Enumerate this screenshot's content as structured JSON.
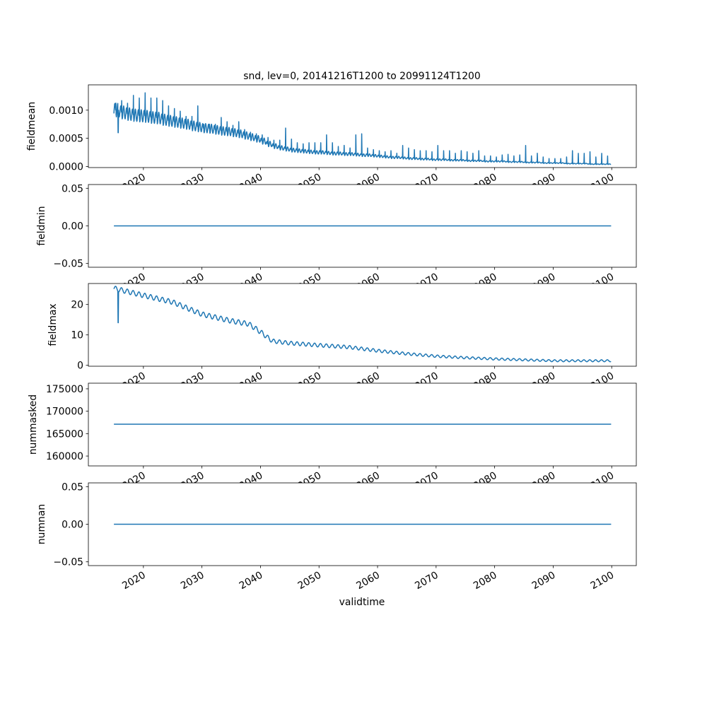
{
  "chart_data": {
    "type": "line",
    "title": "snd, lev=0, 20141216T1200 to 20991124T1200",
    "xlabel": "validtime",
    "x_range": [
      2010.6,
      2104.2
    ],
    "x_start": 2014.96,
    "x_end": 2099.9,
    "x_ticks": [
      2020,
      2030,
      2040,
      2050,
      2060,
      2070,
      2080,
      2090,
      2100
    ],
    "x_tick_labels": [
      "2020",
      "2030",
      "2040",
      "2050",
      "2060",
      "2070",
      "2080",
      "2090",
      "2100"
    ],
    "line_color": "#1f77b4",
    "grid": false,
    "panels": [
      {
        "ylabel": "fieldmean",
        "ylim": [
          -2e-05,
          0.00145
        ],
        "y_ticks": [
          0,
          0.0005,
          0.001
        ],
        "y_tick_labels": [
          "0.0000",
          "0.0005",
          "0.0010"
        ],
        "kind": "seasonal_peaks",
        "annual_years_start": 2015,
        "annual_trough_e4": [
          10.0,
          9.6,
          9.3,
          9.1,
          9.0,
          8.9,
          8.7,
          8.6,
          8.3,
          8.1,
          7.9,
          7.7,
          7.5,
          7.2,
          7.0,
          6.8,
          6.7,
          6.5,
          6.3,
          6.2,
          6.0,
          5.8,
          5.5,
          5.2,
          4.9,
          4.5,
          4.0,
          3.6,
          3.3,
          3.1,
          2.9,
          2.8,
          2.7,
          2.6,
          2.5,
          2.5,
          2.4,
          2.3,
          2.3,
          2.2,
          2.2,
          2.1,
          2.0,
          2.0,
          1.9,
          1.8,
          1.7,
          1.6,
          1.6,
          1.5,
          1.4,
          1.4,
          1.3,
          1.3,
          1.2,
          1.2,
          1.2,
          1.1,
          1.1,
          1.1,
          1.0,
          1.0,
          1.0,
          0.9,
          0.9,
          0.9,
          0.9,
          0.8,
          0.8,
          0.8,
          0.7,
          0.7,
          0.7,
          0.6,
          0.6,
          0.6,
          0.6,
          0.5,
          0.5,
          0.5,
          0.5,
          0.4,
          0.4,
          0.4,
          0.4
        ],
        "annual_peak_e4": [
          12,
          12.5,
          12,
          13.5,
          13,
          14,
          13,
          13,
          12.5,
          11.5,
          11,
          10.5,
          9.5,
          9.5,
          11.5,
          8,
          8,
          8,
          9.3,
          8.5,
          7.8,
          8.5,
          7,
          6.5,
          6.2,
          6,
          5.5,
          5,
          5,
          7.3,
          5.2,
          4.5,
          4.3,
          4.5,
          4.5,
          4.5,
          6,
          4.5,
          3.8,
          4,
          3.5,
          6,
          6.2,
          3.5,
          3.2,
          3,
          2.8,
          3,
          2.5,
          4,
          3.5,
          3.2,
          3,
          3,
          2.8,
          4,
          3,
          3,
          2.5,
          3,
          2.8,
          2.5,
          3,
          2,
          2,
          1.8,
          2.2,
          2.3,
          2,
          2.2,
          4,
          2,
          2.5,
          1.8,
          1.5,
          1.5,
          1.5,
          1.8,
          3,
          2.5,
          2.5,
          2.8,
          1.8,
          2.5,
          2
        ],
        "anomaly": {
          "x": 2015.7,
          "value": 0.0006
        }
      },
      {
        "ylabel": "fieldmin",
        "ylim": [
          -0.055,
          0.055
        ],
        "y_ticks": [
          -0.05,
          0,
          0.05
        ],
        "y_tick_labels": [
          "−0.05",
          "0.00",
          "0.05"
        ],
        "kind": "constant",
        "value": 0
      },
      {
        "ylabel": "fieldmax",
        "ylim": [
          -0.3,
          26.9
        ],
        "y_ticks": [
          0,
          10,
          20
        ],
        "y_tick_labels": [
          "0",
          "10",
          "20"
        ],
        "kind": "oscillating",
        "knot_years": [
          2015,
          2020,
          2025,
          2030,
          2035,
          2038,
          2040,
          2042,
          2045,
          2050,
          2055,
          2060,
          2065,
          2070,
          2075,
          2080,
          2085,
          2090,
          2095,
          2100
        ],
        "knot_values": [
          25.3,
          23,
          20.8,
          16.8,
          14.6,
          13.6,
          11,
          8,
          7.3,
          6.6,
          6,
          4.8,
          3.8,
          3.0,
          2.5,
          2.1,
          1.8,
          1.5,
          1.5,
          1.5
        ],
        "amplitude": 0.8,
        "anomaly": {
          "x": 2015.7,
          "value": 14
        }
      },
      {
        "ylabel": "nummasked",
        "ylim": [
          157800,
          176250
        ],
        "y_ticks": [
          160000,
          165000,
          170000,
          175000
        ],
        "y_tick_labels": [
          "160000",
          "165000",
          "170000",
          "175000"
        ],
        "kind": "constant",
        "value": 167100
      },
      {
        "ylabel": "numnan",
        "ylim": [
          -0.055,
          0.055
        ],
        "y_ticks": [
          -0.05,
          0,
          0.05
        ],
        "y_tick_labels": [
          "−0.05",
          "0.00",
          "0.05"
        ],
        "kind": "constant",
        "value": 0
      }
    ]
  }
}
